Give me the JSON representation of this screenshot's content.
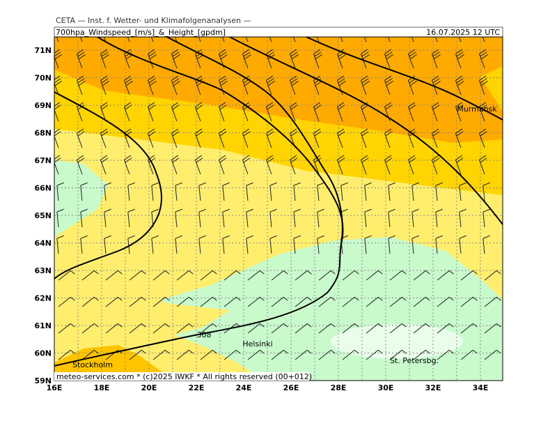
{
  "header": {
    "title": "CETA — Inst. f. Wetter- und Klimafolgenanalysen —",
    "subtitle": "700hpa_Windspeed_[m/s]_&_Height_[gpdm]",
    "datetime": "16.07.2025 12 UTC"
  },
  "axes": {
    "lat_labels": [
      "71N",
      "70N",
      "69N",
      "68N",
      "67N",
      "66N",
      "65N",
      "64N",
      "63N",
      "62N",
      "61N",
      "60N",
      "59N"
    ],
    "lon_labels": [
      "16E",
      "18E",
      "20E",
      "22E",
      "24E",
      "26E",
      "28E",
      "30E",
      "32E",
      "34E"
    ]
  },
  "places": [
    "Murmansk",
    "Helsinki",
    "St. Petersbg.",
    "Stockholm"
  ],
  "contour_labels": [
    "308"
  ],
  "footer": "meteo-services.com * (c)2025 IWKF * All rights reserved (00+012)"
}
